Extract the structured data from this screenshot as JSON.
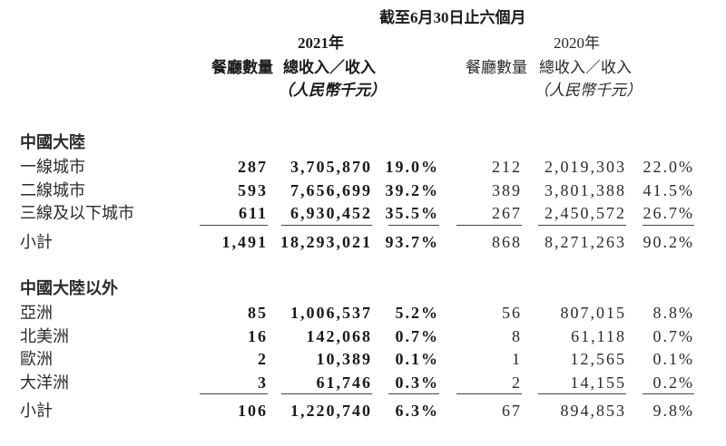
{
  "header": {
    "period": "截至6月30日止六個月",
    "year_2021": "2021年",
    "year_2020": "2020年",
    "col_count": "餐廳數量",
    "col_revenue": "總收入／收入",
    "col_unit": "（人民幣千元）"
  },
  "sections": [
    {
      "title": "中國大陸",
      "rows": [
        {
          "label": "一線城市",
          "c2021": "287",
          "r2021": "3,705,870",
          "p2021": "19.0%",
          "c2020": "212",
          "r2020": "2,019,303",
          "p2020": "22.0%"
        },
        {
          "label": "二線城市",
          "c2021": "593",
          "r2021": "7,656,699",
          "p2021": "39.2%",
          "c2020": "389",
          "r2020": "3,801,388",
          "p2020": "41.5%"
        },
        {
          "label": "三線及以下城市",
          "c2021": "611",
          "r2021": "6,930,452",
          "p2021": "35.5%",
          "c2020": "267",
          "r2020": "2,450,572",
          "p2020": "26.7%"
        }
      ],
      "subtotal": {
        "label": "小計",
        "c2021": "1,491",
        "r2021": "18,293,021",
        "p2021": "93.7%",
        "c2020": "868",
        "r2020": "8,271,263",
        "p2020": "90.2%"
      }
    },
    {
      "title": "中國大陸以外",
      "rows": [
        {
          "label": "亞洲",
          "c2021": "85",
          "r2021": "1,006,537",
          "p2021": "5.2%",
          "c2020": "56",
          "r2020": "807,015",
          "p2020": "8.8%"
        },
        {
          "label": "北美洲",
          "c2021": "16",
          "r2021": "142,068",
          "p2021": "0.7%",
          "c2020": "8",
          "r2020": "61,118",
          "p2020": "0.7%"
        },
        {
          "label": "歐洲",
          "c2021": "2",
          "r2021": "10,389",
          "p2021": "0.1%",
          "c2020": "1",
          "r2020": "12,565",
          "p2020": "0.1%"
        },
        {
          "label": "大洋洲",
          "c2021": "3",
          "r2021": "61,746",
          "p2021": "0.3%",
          "c2020": "2",
          "r2020": "14,155",
          "p2020": "0.2%"
        }
      ],
      "subtotal": {
        "label": "小計",
        "c2021": "106",
        "r2021": "1,220,740",
        "p2021": "6.3%",
        "c2020": "67",
        "r2020": "894,853",
        "p2020": "9.8%"
      }
    }
  ]
}
